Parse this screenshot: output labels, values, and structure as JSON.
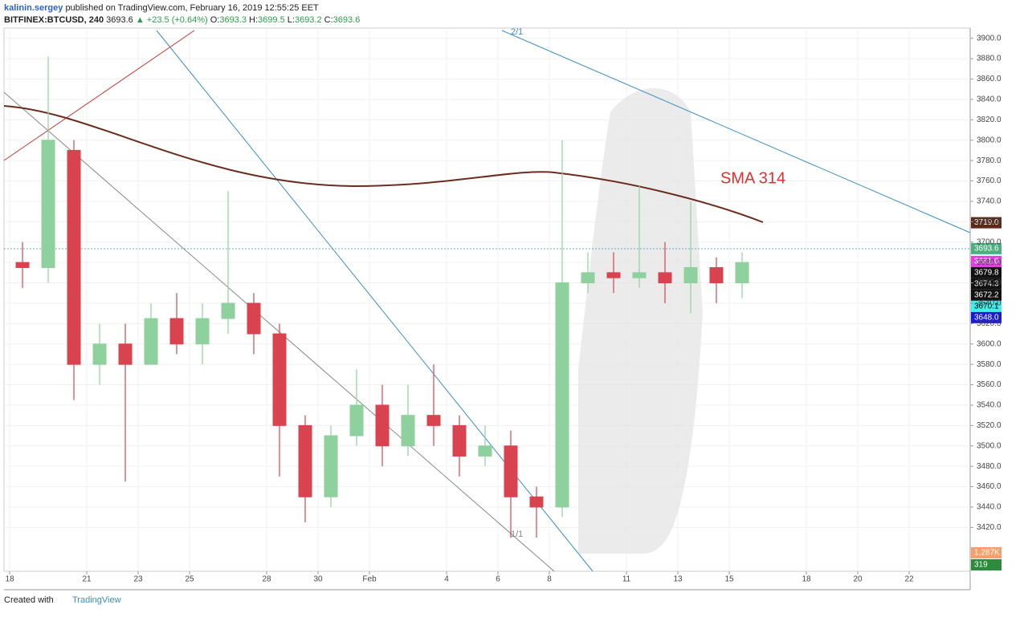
{
  "header": {
    "publisher": "kalinin.sergey",
    "published": "published on TradingView.com, February 16, 2019 12:55:25 EET",
    "symbol": "BITFINEX:BTCUSD, 240",
    "last": "3693.6",
    "change": "▲ +23.5 (+0.64%)",
    "open_label": "O:",
    "open": "3693.3",
    "high_label": "H:",
    "high": "3699.5",
    "low_label": "L:",
    "low": "3693.2",
    "close_label": "C:",
    "close": "3693.6"
  },
  "chart_data": {
    "type": "candlestick",
    "x": [
      0,
      1,
      2,
      3,
      4,
      5,
      6,
      7,
      8,
      9,
      10,
      11,
      12,
      13,
      14,
      15,
      16,
      17,
      18,
      19,
      20,
      21,
      22,
      23,
      24,
      25,
      26,
      27,
      28
    ],
    "open": [
      3680,
      3675,
      3790,
      3580,
      3600,
      3580,
      3625,
      3600,
      3625,
      3640,
      3610,
      3520,
      3450,
      3510,
      3540,
      3500,
      3530,
      3520,
      3490,
      3500,
      3450,
      3440,
      3660,
      3670,
      3665,
      3670,
      3660,
      3675,
      3660
    ],
    "high": [
      3700,
      3882,
      3800,
      3620,
      3620,
      3640,
      3650,
      3640,
      3750,
      3650,
      3620,
      3530,
      3520,
      3575,
      3560,
      3560,
      3580,
      3530,
      3520,
      3515,
      3460,
      3800,
      3690,
      3690,
      3755,
      3700,
      3740,
      3685,
      3690
    ],
    "low": [
      3655,
      3660,
      3545,
      3560,
      3465,
      3580,
      3590,
      3580,
      3610,
      3590,
      3470,
      3425,
      3440,
      3500,
      3480,
      3490,
      3500,
      3470,
      3480,
      3410,
      3410,
      3430,
      3650,
      3650,
      3655,
      3640,
      3630,
      3640,
      3645
    ],
    "close": [
      3675,
      3800,
      3580,
      3600,
      3580,
      3625,
      3600,
      3625,
      3640,
      3610,
      3520,
      3450,
      3510,
      3540,
      3500,
      3530,
      3520,
      3490,
      3500,
      3450,
      3440,
      3660,
      3670,
      3665,
      3670,
      3660,
      3675,
      3660,
      3680
    ],
    "up_color": "#8fd19e",
    "down_color": "#d9434f",
    "xlim": [
      -0.22,
      37.375
    ],
    "ylim": [
      3377,
      3910
    ],
    "xticks": [
      {
        "value": 0,
        "label": "18"
      },
      {
        "value": 3,
        "label": "21"
      },
      {
        "value": 5,
        "label": "23"
      },
      {
        "value": 7,
        "label": "25"
      },
      {
        "value": 10,
        "label": "28"
      },
      {
        "value": 12,
        "label": "30"
      },
      {
        "value": 14,
        "label": "Feb"
      },
      {
        "value": 17,
        "label": "4"
      },
      {
        "value": 19,
        "label": "6"
      },
      {
        "value": 21,
        "label": "8"
      },
      {
        "value": 24,
        "label": "11"
      },
      {
        "value": 26,
        "label": "13"
      },
      {
        "value": 28,
        "label": "15"
      },
      {
        "value": 31,
        "label": "18"
      },
      {
        "value": 33,
        "label": "20"
      },
      {
        "value": 35,
        "label": "22"
      }
    ],
    "yticks": [
      {
        "value": 3420,
        "label": "3420.0"
      },
      {
        "value": 3440,
        "label": "3440.0"
      },
      {
        "value": 3460,
        "label": "3460.0"
      },
      {
        "value": 3480,
        "label": "3480.0"
      },
      {
        "value": 3500,
        "label": "3500.0"
      },
      {
        "value": 3520,
        "label": "3520.0"
      },
      {
        "value": 3540,
        "label": "3540.0"
      },
      {
        "value": 3560,
        "label": "3560.0"
      },
      {
        "value": 3580,
        "label": "3580.0"
      },
      {
        "value": 3600,
        "label": "3600.0"
      },
      {
        "value": 3620,
        "label": "3620.0"
      },
      {
        "value": 3640,
        "label": "3640.0"
      },
      {
        "value": 3660,
        "label": "3660.0"
      },
      {
        "value": 3680,
        "label": "3680.0"
      },
      {
        "value": 3700,
        "label": "3700.0"
      },
      {
        "value": 3720,
        "label": "3720.0"
      },
      {
        "value": 3740,
        "label": "3740.0"
      },
      {
        "value": 3760,
        "label": "3760.0"
      },
      {
        "value": 3780,
        "label": "3780.0"
      },
      {
        "value": 3800,
        "label": "3800.0"
      },
      {
        "value": 3820,
        "label": "3820.0"
      },
      {
        "value": 3840,
        "label": "3840.0"
      },
      {
        "value": 3860,
        "label": "3860.0"
      },
      {
        "value": 3880,
        "label": "3880.0"
      },
      {
        "value": 3900,
        "label": "3900.0"
      }
    ],
    "price_tags": [
      {
        "value": 3719.0,
        "label": "3719.0",
        "color": "#5d2a1a"
      },
      {
        "value": 3693.6,
        "label": "3693.6",
        "color": "#4caf80"
      },
      {
        "value": 3681.0,
        "label": "3681.0",
        "color": "#e040e0"
      },
      {
        "value": 3679.8,
        "label": "3679.8",
        "color": "#111111"
      },
      {
        "value": 3674.3,
        "label": "3674.3",
        "color": "#111111"
      },
      {
        "value": 3672.2,
        "label": "3672.2",
        "color": "#111111"
      },
      {
        "value": 3670.1,
        "label": "3670.1",
        "color": "#3ff0f0"
      },
      {
        "value": 3648.0,
        "label": "3648.0",
        "color": "#1a1ad8"
      }
    ],
    "volume_labels": [
      {
        "label": "1.287K",
        "color": "#f5a06a"
      },
      {
        "label": "319",
        "color": "#2e8b3c"
      }
    ],
    "annotations": {
      "sma": "SMA 314",
      "fib_top": "2/1",
      "fib_bottom": "1/1"
    },
    "grid": true
  },
  "footer": {
    "created": "Created with",
    "brand": "TradingView"
  }
}
